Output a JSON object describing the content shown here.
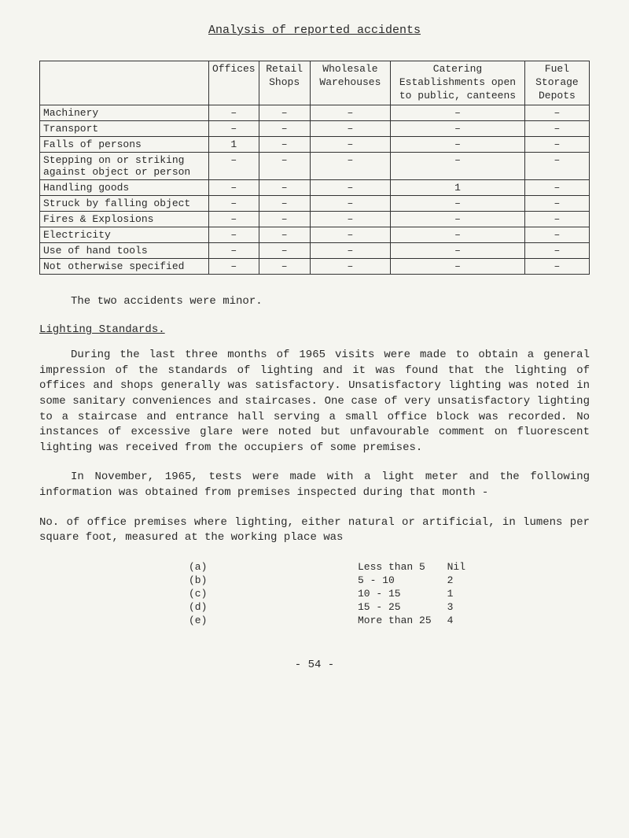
{
  "title": "Analysis of reported accidents",
  "table": {
    "headers": [
      "",
      "Offices",
      "Retail Shops",
      "Wholesale Warehouses",
      "Catering Establishments open to public, canteens",
      "Fuel Storage Depots"
    ],
    "rows": [
      {
        "label": "Machinery",
        "cells": [
          "–",
          "–",
          "–",
          "–",
          "–"
        ]
      },
      {
        "label": "Transport",
        "cells": [
          "–",
          "–",
          "–",
          "–",
          "–"
        ]
      },
      {
        "label": "Falls of persons",
        "cells": [
          "1",
          "–",
          "–",
          "–",
          "–"
        ]
      },
      {
        "label": "Stepping on or striking against object or person",
        "cells": [
          "–",
          "–",
          "–",
          "–",
          "–"
        ]
      },
      {
        "label": "Handling goods",
        "cells": [
          "–",
          "–",
          "–",
          "1",
          "–"
        ]
      },
      {
        "label": "Struck by falling object",
        "cells": [
          "–",
          "–",
          "–",
          "–",
          "–"
        ]
      },
      {
        "label": "Fires & Explosions",
        "cells": [
          "–",
          "–",
          "–",
          "–",
          "–"
        ]
      },
      {
        "label": "Electricity",
        "cells": [
          "–",
          "–",
          "–",
          "–",
          "–"
        ]
      },
      {
        "label": "Use of hand tools",
        "cells": [
          "–",
          "–",
          "–",
          "–",
          "–"
        ]
      },
      {
        "label": "Not otherwise specified",
        "cells": [
          "–",
          "–",
          "–",
          "–",
          "–"
        ]
      }
    ]
  },
  "para1": "The two accidents were minor.",
  "heading1": "Lighting Standards.",
  "para2": "During the last three months of 1965 visits were made to obtain a general impression of the standards of lighting and it was found that the lighting of offices and shops generally was satisfactory. Unsatisfactory lighting was noted in some sanitary conveniences and staircases. One case of very unsatisfactory lighting to a staircase and entrance hall serving a small office block was recorded. No instances of excessive glare were noted but unfavourable comment on fluorescent lighting was received from the occupiers of some premises.",
  "para3": "In November, 1965, tests were made with a light meter and the following information was obtained from premises inspected during that month -",
  "para4": "No. of office premises where lighting, either natural or artificial, in lumens per square foot, measured at the working place was",
  "list": [
    {
      "key": "(a)",
      "range": "Less than 5",
      "val": "Nil"
    },
    {
      "key": "(b)",
      "range": "5 - 10",
      "val": "2"
    },
    {
      "key": "(c)",
      "range": "10 - 15",
      "val": "1"
    },
    {
      "key": "(d)",
      "range": "15 - 25",
      "val": "3"
    },
    {
      "key": "(e)",
      "range": "More than 25",
      "val": "4"
    }
  ],
  "pagenum": "- 54 -"
}
